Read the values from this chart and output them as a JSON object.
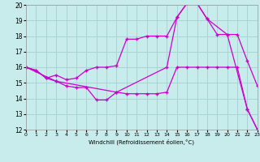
{
  "xlabel": "Windchill (Refroidissement éolien,°C)",
  "bg_color": "#c8ecec",
  "grid_color": "#aad4d4",
  "line_color": "#cc00cc",
  "xmin": 0,
  "xmax": 23,
  "ymin": 12,
  "ymax": 20,
  "line1_x": [
    0,
    1,
    2,
    3,
    4,
    5,
    6,
    7,
    8,
    9,
    10,
    11,
    12,
    13,
    14,
    15,
    16,
    17,
    18,
    19,
    20,
    21,
    22,
    23
  ],
  "line1_y": [
    16.0,
    15.8,
    15.3,
    15.1,
    14.8,
    14.7,
    14.7,
    13.9,
    13.9,
    14.4,
    14.3,
    14.3,
    14.3,
    14.3,
    14.4,
    16.0,
    16.0,
    16.0,
    16.0,
    16.0,
    16.0,
    16.0,
    13.3,
    12.0
  ],
  "line2_x": [
    0,
    1,
    2,
    3,
    4,
    5,
    6,
    7,
    8,
    9,
    10,
    11,
    12,
    13,
    14,
    15,
    16,
    17,
    18,
    19,
    20,
    21,
    22,
    23
  ],
  "line2_y": [
    16.0,
    15.8,
    15.3,
    15.5,
    15.2,
    15.3,
    15.8,
    16.0,
    16.0,
    16.1,
    17.8,
    17.8,
    18.0,
    18.0,
    18.0,
    19.2,
    20.1,
    20.1,
    19.1,
    18.1,
    18.1,
    18.1,
    16.4,
    14.8
  ],
  "line3_x": [
    0,
    3,
    9,
    14,
    15,
    16,
    17,
    18,
    20,
    22,
    23
  ],
  "line3_y": [
    16.0,
    15.1,
    14.4,
    16.0,
    19.2,
    20.1,
    20.1,
    19.1,
    18.1,
    13.3,
    12.0
  ],
  "yticks": [
    12,
    13,
    14,
    15,
    16,
    17,
    18,
    19,
    20
  ],
  "xticks": [
    0,
    1,
    2,
    3,
    4,
    5,
    6,
    7,
    8,
    9,
    10,
    11,
    12,
    13,
    14,
    15,
    16,
    17,
    18,
    19,
    20,
    21,
    22,
    23
  ]
}
